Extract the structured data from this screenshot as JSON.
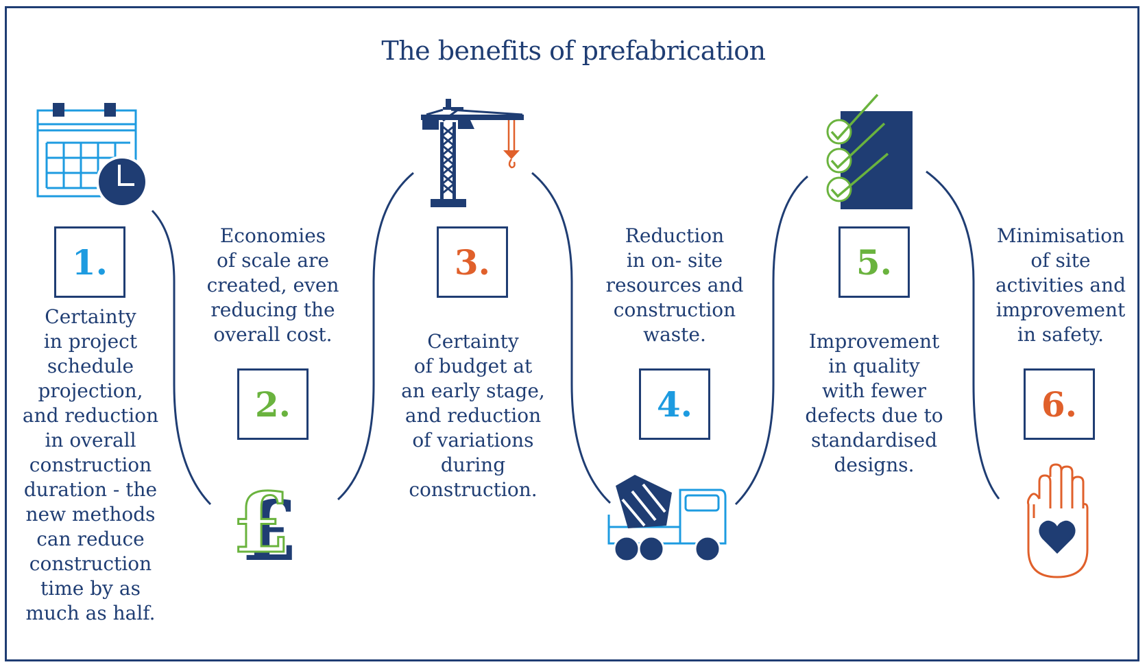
{
  "title": "The benefits of prefabrication",
  "colors": {
    "navy": "#1f3d73",
    "blue": "#1d9be0",
    "green": "#6ab33e",
    "orange": "#e0602b"
  },
  "steps": [
    {
      "number": "1.",
      "number_color": "#1d9be0",
      "icon": "calendar-clock-icon",
      "lines": [
        "Certainty",
        "in project",
        "schedule",
        "projection,",
        "and reduction",
        "in overall",
        "construction",
        "duration - the",
        "new methods",
        "can reduce",
        "construction",
        "time by as",
        "much as half."
      ]
    },
    {
      "number": "2.",
      "number_color": "#6ab33e",
      "icon": "pound-sign-icon",
      "lines": [
        "Economies",
        "of scale are",
        "created, even",
        "reducing the",
        "overall cost."
      ]
    },
    {
      "number": "3.",
      "number_color": "#e0602b",
      "icon": "tower-crane-icon",
      "lines": [
        "Certainty",
        "of budget at",
        "an early stage,",
        "and reduction",
        "of variations",
        "during",
        "construction."
      ]
    },
    {
      "number": "4.",
      "number_color": "#1d9be0",
      "icon": "cement-mixer-truck-icon",
      "lines": [
        "Reduction",
        "in on- site",
        "resources and",
        "construction",
        "waste."
      ]
    },
    {
      "number": "5.",
      "number_color": "#6ab33e",
      "icon": "checklist-icon",
      "lines": [
        "Improvement",
        "in quality",
        "with fewer",
        "defects due to",
        "standardised",
        "designs."
      ]
    },
    {
      "number": "6.",
      "number_color": "#e0602b",
      "icon": "hand-heart-icon",
      "lines": [
        "Minimisation",
        "of site",
        "activities and",
        "improvement",
        "in safety."
      ]
    }
  ]
}
